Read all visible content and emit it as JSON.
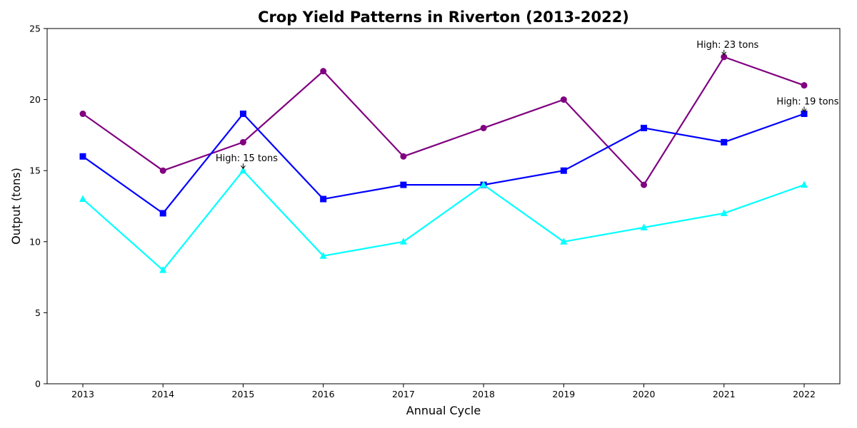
{
  "chart_data": {
    "type": "line",
    "title": "Crop Yield Patterns in Riverton (2013-2022)",
    "xlabel": "Annual Cycle",
    "ylabel": "Output (tons)",
    "x": [
      2013,
      2014,
      2015,
      2016,
      2017,
      2018,
      2019,
      2020,
      2021,
      2022
    ],
    "ylim": [
      0,
      25
    ],
    "yticks": [
      0,
      5,
      10,
      15,
      20,
      25
    ],
    "grid": false,
    "series": [
      {
        "values": [
          19,
          15,
          17,
          22,
          16,
          18,
          20,
          14,
          23,
          21
        ],
        "color": "#800080",
        "marker": "circle"
      },
      {
        "values": [
          16,
          12,
          19,
          13,
          14,
          14,
          15,
          18,
          17,
          19
        ],
        "color": "#0000ff",
        "marker": "square"
      },
      {
        "values": [
          13,
          8,
          15,
          9,
          10,
          14,
          10,
          11,
          12,
          14
        ],
        "color": "#00ffff",
        "marker": "triangle"
      }
    ],
    "annotations": [
      {
        "text": "High: 23 tons",
        "x": 2021,
        "y": 23
      },
      {
        "text": "High: 19 tons",
        "x": 2022,
        "y": 19
      },
      {
        "text": "High: 15 tons",
        "x": 2015,
        "y": 15
      }
    ]
  }
}
